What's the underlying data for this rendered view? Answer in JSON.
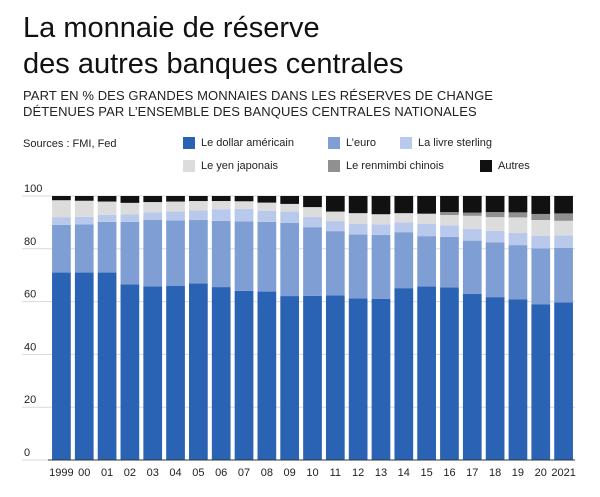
{
  "header": {
    "title_line1": "La monnaie de réserve",
    "title_line2": "des autres banques centrales",
    "subtitle_line1": "PART EN % DES GRANDES MONNAIES DANS LES RÉSERVES DE CHANGE",
    "subtitle_line2": "DÉTENUES PAR L’ENSEMBLE DES BANQUES CENTRALES NATIONALES",
    "sources": "Sources : FMI, Fed"
  },
  "legend": [
    {
      "label": "Le dollar américain",
      "color": "#2b63b4"
    },
    {
      "label": "L’euro",
      "color": "#7f9fd4"
    },
    {
      "label": "La livre sterling",
      "color": "#b9c9ec"
    },
    {
      "label": "Le yen japonais",
      "color": "#dcdcdc"
    },
    {
      "label": "Le renmimbi chinois",
      "color": "#909090"
    },
    {
      "label": "Autres",
      "color": "#111111"
    }
  ],
  "chart_data": {
    "type": "bar",
    "stacked": true,
    "categories": [
      "1999",
      "00",
      "01",
      "02",
      "03",
      "04",
      "05",
      "06",
      "07",
      "08",
      "09",
      "10",
      "11",
      "12",
      "13",
      "14",
      "15",
      "16",
      "17",
      "18",
      "19",
      "20",
      "2021"
    ],
    "ylim": [
      0,
      100
    ],
    "yticks": [
      0,
      20,
      40,
      60,
      80,
      100
    ],
    "series": [
      {
        "name": "Le dollar américain",
        "color": "#2b63b4",
        "values": [
          71,
          71,
          71,
          66.5,
          65.8,
          65.9,
          66.9,
          65.5,
          64.1,
          63.8,
          62.1,
          62.2,
          62.3,
          61.2,
          61.0,
          65.1,
          65.7,
          65.4,
          62.9,
          61.7,
          60.8,
          58.9,
          59.7
        ]
      },
      {
        "name": "L’euro",
        "color": "#7f9fd4",
        "values": [
          18.1,
          18.3,
          19.2,
          23.7,
          25.2,
          24.8,
          24.0,
          25.1,
          26.3,
          26.4,
          27.7,
          26.0,
          24.4,
          24.2,
          24.3,
          21.2,
          19.1,
          19.1,
          20.2,
          20.7,
          20.6,
          21.3,
          20.6
        ]
      },
      {
        "name": "La livre sterling",
        "color": "#b9c9ec",
        "values": [
          2.9,
          2.8,
          2.7,
          2.8,
          2.8,
          3.4,
          3.6,
          4.4,
          4.7,
          4.2,
          4.3,
          3.9,
          3.8,
          4.0,
          4.0,
          3.7,
          4.7,
          4.3,
          4.5,
          4.4,
          4.6,
          4.7,
          4.8
        ]
      },
      {
        "name": "Le yen japonais",
        "color": "#dcdcdc",
        "values": [
          6.4,
          6.1,
          5.0,
          4.4,
          3.9,
          3.8,
          3.6,
          3.1,
          2.9,
          3.1,
          2.9,
          3.7,
          3.6,
          4.1,
          3.8,
          3.5,
          3.8,
          4.0,
          4.9,
          5.2,
          5.9,
          6.0,
          5.5
        ]
      },
      {
        "name": "Le renmimbi chinois",
        "color": "#909090",
        "values": [
          0,
          0,
          0,
          0,
          0,
          0,
          0,
          0,
          0,
          0,
          0,
          0,
          0,
          0,
          0,
          0,
          0,
          1.1,
          1.2,
          1.9,
          1.9,
          2.3,
          2.8
        ]
      },
      {
        "name": "Autres",
        "color": "#111111",
        "values": [
          1.6,
          1.8,
          2.1,
          2.6,
          2.3,
          2.1,
          1.9,
          1.9,
          2.0,
          2.5,
          3.0,
          4.2,
          5.9,
          6.5,
          6.9,
          6.5,
          6.7,
          6.1,
          6.3,
          6.1,
          6.2,
          6.8,
          6.6
        ]
      }
    ]
  }
}
